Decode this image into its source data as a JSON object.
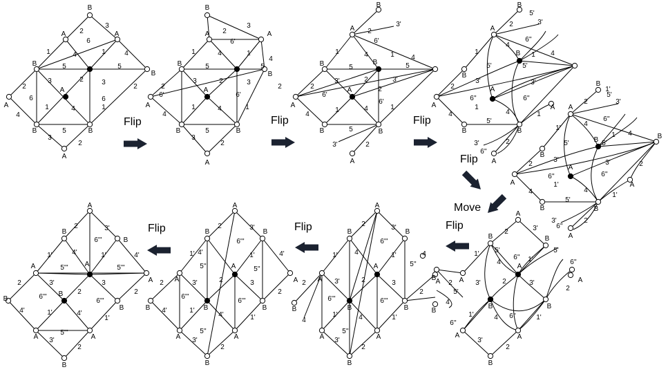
{
  "steps": [
    "Flip",
    "Flip",
    "Flip",
    "Flip",
    "Move",
    "Flip",
    "Flip",
    "Flip"
  ],
  "vertex_labels": {
    "a": "A",
    "b": "B"
  },
  "edge_labels": {
    "one": "1",
    "two": "2",
    "three": "3",
    "four": "4",
    "five": "5",
    "six": "6",
    "one_p": "1'",
    "three_p": "3'",
    "four_p": "4'",
    "five_p": "5'",
    "six_p": "6'",
    "five_pp": "5''",
    "six_pp": "6''",
    "six_ppp": "6'''",
    "five_ppp": "5'''"
  },
  "colors": {
    "ink": "#000000",
    "paper": "#ffffff",
    "arrow": "#1b2230"
  }
}
